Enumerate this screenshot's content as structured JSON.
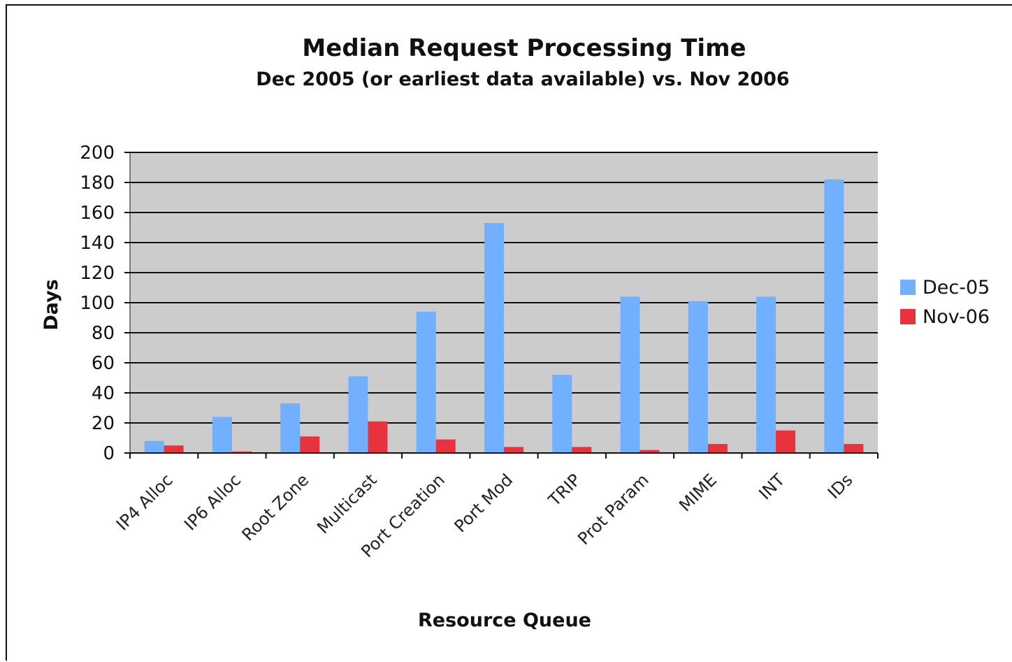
{
  "colors": {
    "plot_background": "#cccccc",
    "gridline": "#111111",
    "dec05": "#70b0ff",
    "nov06": "#e8333f"
  },
  "chart_data": {
    "type": "bar",
    "title": "Median Request Processing Time",
    "subtitle": "Dec 2005 (or earliest data available) vs. Nov 2006",
    "xlabel": "Resource Queue",
    "ylabel": "Days",
    "ylim": [
      0,
      200
    ],
    "yticks": [
      0,
      20,
      40,
      60,
      80,
      100,
      120,
      140,
      160,
      180,
      200
    ],
    "grid": true,
    "legend_position": "right",
    "categories": [
      "IP4 Alloc",
      "IP6 Alloc",
      "Root Zone",
      "Multicast",
      "Port Creation",
      "Port Mod",
      "TRIP",
      "Prot Param",
      "MIME",
      "INT",
      "IDs"
    ],
    "series": [
      {
        "name": "Dec-05",
        "color": "#70b0ff",
        "values": [
          8,
          24,
          33,
          51,
          94,
          153,
          52,
          104,
          101,
          104,
          182
        ]
      },
      {
        "name": "Nov-06",
        "color": "#e8333f",
        "values": [
          5,
          1,
          11,
          21,
          9,
          4,
          4,
          2,
          6,
          15,
          6
        ]
      }
    ]
  }
}
